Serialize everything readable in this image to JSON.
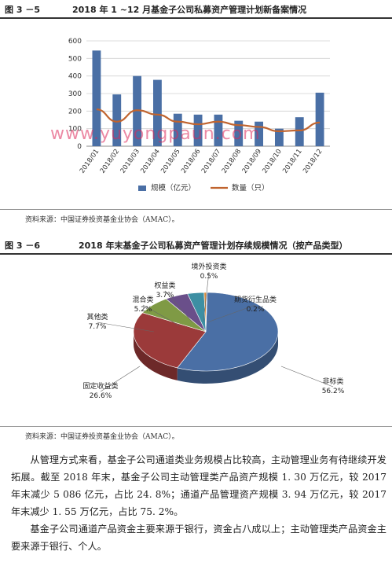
{
  "figure1": {
    "number": "图 3 －5",
    "title": "2018 年 1 ~12 月基金子公司私募资产管理计划新备案情况",
    "source": "资料来源：中国证券投资基金业协会（AMAC）。"
  },
  "figure2": {
    "number": "图 3 －6",
    "title": "2018 年末基金子公司私募资产管理计划存续规模情况（按产品类型）",
    "source": "资料来源：中国证券投资基金业协会（AMAC）。"
  },
  "watermark": "www.yuyongpaun.com",
  "chart_data": [
    {
      "type": "bar",
      "categories": [
        "2018/01",
        "2018/02",
        "2018/03",
        "2018/04",
        "2018/05",
        "2018/06",
        "2018/07",
        "2018/08",
        "2018/09",
        "2018/10",
        "2018/11",
        "2018/12"
      ],
      "ylim": [
        0,
        600
      ],
      "yticks": [
        0,
        100,
        200,
        300,
        400,
        500,
        600
      ],
      "grid": true,
      "legend": "bottom",
      "series": [
        {
          "name": "规模（亿元）",
          "type": "bar",
          "color": "#4a6fa5",
          "values": [
            545,
            295,
            400,
            378,
            185,
            180,
            180,
            145,
            140,
            100,
            165,
            305
          ]
        },
        {
          "name": "数量（只）",
          "type": "line",
          "color": "#c0642f",
          "values": [
            210,
            140,
            205,
            180,
            140,
            125,
            140,
            120,
            110,
            85,
            90,
            135
          ]
        }
      ]
    },
    {
      "type": "pie",
      "slices": [
        {
          "label": "非标类",
          "value": 56.2,
          "display": "56.2%",
          "color": "#4a6fa5"
        },
        {
          "label": "固定收益类",
          "value": 26.6,
          "display": "26.6%",
          "color": "#9b3a3a"
        },
        {
          "label": "其他类",
          "value": 7.7,
          "display": "7.7%",
          "color": "#7f9a45"
        },
        {
          "label": "混合类",
          "value": 5.2,
          "display": "5.2%",
          "color": "#6a4f8a"
        },
        {
          "label": "权益类",
          "value": 3.7,
          "display": "3.7%",
          "color": "#3d8fa3"
        },
        {
          "label": "境外投资类",
          "value": 0.5,
          "display": "0.5%",
          "color": "#d98a3a"
        },
        {
          "label": "期货衍生品类",
          "value": 0.2,
          "display": "0.2%",
          "color": "#6a84b8"
        }
      ]
    }
  ],
  "body_text": [
    "从管理方式来看，基金子公司通道类业务规模占比较高，主动管理业务有待继续开发拓展。截至 2018 年末，基金子公司主动管理类产品资产规模 1. 30 万亿元，较 2017 年末减少 5 086 亿元，占比 24. 8%；通道产品管理资产规模 3. 94 万亿元，较 2017 年末减少 1. 55 万亿元，占比 75. 2%。",
    "基金子公司通道产品资金主要来源于银行，资金占八成以上；主动管理类产品资金主要来源于银行、个人。"
  ]
}
